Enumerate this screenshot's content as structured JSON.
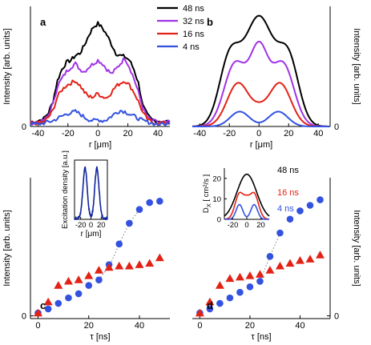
{
  "colors": {
    "black": "#000000",
    "purple": "#a033e6",
    "red": "#e32216",
    "blue": "#3352e0",
    "dark_blue": "#10249c",
    "dotted": "#7a7a7a"
  },
  "chart_data": [
    {
      "panel": "a",
      "type": "line",
      "xlabel": "r [μm]",
      "ylabel": "Intensity [arb. units]",
      "ylabel_side": "left",
      "xlim": [
        -45,
        48
      ],
      "ylim": [
        0,
        1.05
      ],
      "x_ticks": [
        -40,
        -20,
        0,
        20,
        40
      ],
      "y_ticks": [
        0
      ],
      "legend": {
        "placement": "top-center",
        "entries": [
          "48 ns",
          "32 ns",
          "16 ns",
          "4 ns"
        ]
      },
      "series": [
        {
          "name": "48 ns",
          "color_key": "black",
          "noisy": true,
          "x": [
            -45,
            -40,
            -36,
            -33,
            -30,
            -27,
            -24,
            -21,
            -18,
            -15,
            -12,
            -9,
            -6,
            -3,
            0,
            3,
            6,
            9,
            12,
            15,
            18,
            21,
            24,
            27,
            30,
            33,
            36,
            40,
            45,
            48
          ],
          "y": [
            0.04,
            0.05,
            0.07,
            0.12,
            0.22,
            0.4,
            0.5,
            0.56,
            0.58,
            0.62,
            0.64,
            0.71,
            0.8,
            0.87,
            0.9,
            0.86,
            0.8,
            0.72,
            0.64,
            0.62,
            0.61,
            0.58,
            0.5,
            0.38,
            0.18,
            0.1,
            0.06,
            0.05,
            0.04,
            0.05
          ]
        },
        {
          "name": "32 ns",
          "color_key": "purple",
          "noisy": true,
          "x": [
            -45,
            -40,
            -36,
            -33,
            -30,
            -27,
            -24,
            -21,
            -18,
            -15,
            -12,
            -9,
            -6,
            -3,
            0,
            3,
            6,
            9,
            12,
            15,
            18,
            21,
            24,
            27,
            30,
            33,
            36,
            40,
            45,
            48
          ],
          "y": [
            0.03,
            0.04,
            0.05,
            0.1,
            0.2,
            0.35,
            0.42,
            0.48,
            0.52,
            0.55,
            0.5,
            0.48,
            0.52,
            0.55,
            0.58,
            0.55,
            0.5,
            0.46,
            0.5,
            0.55,
            0.6,
            0.52,
            0.42,
            0.3,
            0.16,
            0.08,
            0.05,
            0.04,
            0.03,
            0.04
          ]
        },
        {
          "name": "16 ns",
          "color_key": "red",
          "noisy": true,
          "x": [
            -45,
            -40,
            -36,
            -33,
            -30,
            -27,
            -24,
            -21,
            -18,
            -15,
            -12,
            -9,
            -6,
            -3,
            0,
            3,
            6,
            9,
            12,
            15,
            18,
            21,
            24,
            27,
            30,
            33,
            36,
            40,
            45,
            48
          ],
          "y": [
            0.03,
            0.03,
            0.04,
            0.08,
            0.14,
            0.26,
            0.32,
            0.36,
            0.38,
            0.4,
            0.36,
            0.3,
            0.26,
            0.26,
            0.29,
            0.26,
            0.25,
            0.3,
            0.35,
            0.38,
            0.4,
            0.36,
            0.3,
            0.22,
            0.12,
            0.06,
            0.04,
            0.03,
            0.03,
            0.03
          ]
        },
        {
          "name": "4 ns",
          "color_key": "blue",
          "noisy": true,
          "x": [
            -45,
            -40,
            -36,
            -33,
            -30,
            -27,
            -24,
            -21,
            -18,
            -15,
            -12,
            -9,
            -6,
            -3,
            0,
            3,
            6,
            9,
            12,
            15,
            18,
            21,
            24,
            27,
            30,
            33,
            36,
            40,
            45,
            48
          ],
          "y": [
            0.02,
            0.02,
            0.03,
            0.04,
            0.05,
            0.07,
            0.09,
            0.11,
            0.12,
            0.13,
            0.11,
            0.08,
            0.06,
            0.05,
            0.06,
            0.05,
            0.06,
            0.09,
            0.12,
            0.14,
            0.13,
            0.11,
            0.09,
            0.07,
            0.05,
            0.04,
            0.03,
            0.02,
            0.02,
            0.02
          ]
        }
      ]
    },
    {
      "panel": "b",
      "type": "line",
      "xlabel": "r [μm]",
      "ylabel": "Intensity [arb. units]",
      "ylabel_side": "right",
      "xlim": [
        -45,
        48
      ],
      "ylim": [
        0,
        1.05
      ],
      "x_ticks": [
        -40,
        -20,
        0,
        20,
        40
      ],
      "y_ticks": [
        0
      ],
      "series": [
        {
          "name": "48 ns",
          "color_key": "black",
          "model": {
            "base": 0,
            "center": 0.95,
            "center_w": 10,
            "side": 0.55,
            "side_pos": 20,
            "side_w": 7
          }
        },
        {
          "name": "32 ns",
          "color_key": "purple",
          "model": {
            "base": 0,
            "center": 0.63,
            "center_w": 6,
            "side": 0.55,
            "side_pos": 16,
            "side_w": 7.5
          }
        },
        {
          "name": "16 ns",
          "color_key": "red",
          "model": {
            "base": 0,
            "center": 0.08,
            "center_w": 5,
            "side": 0.38,
            "side_pos": 14,
            "side_w": 7.5
          }
        },
        {
          "name": "4 ns",
          "color_key": "blue",
          "model": {
            "base": 0,
            "center": 0.0,
            "center_w": 5,
            "side": 0.13,
            "side_pos": 13,
            "side_w": 6.5
          }
        }
      ]
    },
    {
      "panel": "c",
      "type": "scatter",
      "xlabel": "τ [ns]",
      "ylabel": "Intensity [arb. units]",
      "ylabel_side": "left",
      "xlim": [
        -3,
        52
      ],
      "ylim": [
        -0.02,
        1.0
      ],
      "x_ticks": [
        0,
        20,
        40
      ],
      "y_ticks": [
        0
      ],
      "series": [
        {
          "marker": "circle",
          "color_key": "blue",
          "x": [
            0,
            4,
            8,
            12,
            16,
            20,
            24,
            28,
            32,
            36,
            40,
            44,
            48
          ],
          "y": [
            0.02,
            0.05,
            0.09,
            0.13,
            0.16,
            0.22,
            0.26,
            0.37,
            0.52,
            0.67,
            0.77,
            0.82,
            0.83
          ]
        },
        {
          "marker": "triangle",
          "color_key": "red",
          "x": [
            0,
            4,
            8,
            12,
            16,
            20,
            24,
            28,
            32,
            36,
            40,
            44,
            48
          ],
          "y": [
            0.02,
            0.1,
            0.22,
            0.25,
            0.26,
            0.29,
            0.33,
            0.35,
            0.36,
            0.36,
            0.37,
            0.38,
            0.42
          ]
        }
      ],
      "dotted_segments": [
        {
          "color_key": "dotted",
          "points": [
            [
              28,
              0.35
            ],
            [
              32,
              0.52
            ],
            [
              36,
              0.67
            ],
            [
              40,
              0.77
            ]
          ]
        },
        {
          "color_key": "dotted",
          "points": [
            [
              24,
              0.26
            ],
            [
              28,
              0.36
            ]
          ]
        }
      ],
      "inset": {
        "type": "line",
        "xlabel": "r [μm]",
        "ylabel": "Excitation density [a.u.]",
        "xlim": [
          -32,
          32
        ],
        "ylim": [
          0,
          1.1
        ],
        "x_ticks": [
          -20,
          0,
          20
        ],
        "series": [
          {
            "color_key": "dark_blue",
            "noisy": true,
            "model": {
              "base": 0.02,
              "center": 0.0,
              "center_w": 5,
              "side": 0.93,
              "side_pos": 11.5,
              "side_w": 4.2
            }
          }
        ]
      }
    },
    {
      "panel": "d",
      "type": "scatter",
      "xlabel": "τ [ns]",
      "ylabel": "Intensity [arb. units]",
      "ylabel_side": "right",
      "xlim": [
        -3,
        52
      ],
      "ylim": [
        -0.02,
        1.0
      ],
      "x_ticks": [
        0,
        20,
        40
      ],
      "y_ticks": [
        0
      ],
      "series": [
        {
          "marker": "circle",
          "color_key": "blue",
          "x": [
            0,
            4,
            8,
            12,
            16,
            20,
            24,
            28,
            32,
            36,
            40,
            44,
            48
          ],
          "y": [
            0.02,
            0.05,
            0.09,
            0.13,
            0.17,
            0.21,
            0.25,
            0.43,
            0.6,
            0.7,
            0.76,
            0.8,
            0.84
          ]
        },
        {
          "marker": "triangle",
          "color_key": "red",
          "x": [
            0,
            4,
            8,
            12,
            16,
            20,
            24,
            28,
            32,
            36,
            40,
            44,
            48
          ],
          "y": [
            0.02,
            0.1,
            0.22,
            0.27,
            0.28,
            0.29,
            0.3,
            0.33,
            0.36,
            0.38,
            0.4,
            0.41,
            0.44
          ]
        }
      ],
      "dotted_segments": [
        {
          "color_key": "dotted",
          "points": [
            [
              24,
              0.25
            ],
            [
              28,
              0.43
            ],
            [
              32,
              0.6
            ]
          ]
        }
      ],
      "inset": {
        "type": "line",
        "xlabel": "",
        "ylabel": "D_X [cm²/s]",
        "ylabel_main": "D",
        "ylabel_sub": "X",
        "ylabel_unit": "[ cm²/s ]",
        "xlim": [
          -32,
          32
        ],
        "ylim": [
          0,
          25
        ],
        "x_ticks": [
          -20,
          0,
          20
        ],
        "y_ticks": [
          0,
          10,
          20
        ],
        "series": [
          {
            "name": "48 ns",
            "color_key": "black",
            "model": {
              "base": 0,
              "center": 22,
              "center_w": 14,
              "side": 0,
              "side_pos": 14,
              "side_w": 7
            }
          },
          {
            "name": "16 ns",
            "color_key": "red",
            "model": {
              "base": 0,
              "center": 4,
              "center_w": 4,
              "side": 12.8,
              "side_pos": 10,
              "side_w": 6.5
            }
          },
          {
            "name": "4 ns",
            "color_key": "blue",
            "model": {
              "base": 0,
              "center": 0,
              "center_w": 4,
              "side": 7.2,
              "side_pos": 10.5,
              "side_w": 4.8
            }
          }
        ]
      }
    }
  ]
}
